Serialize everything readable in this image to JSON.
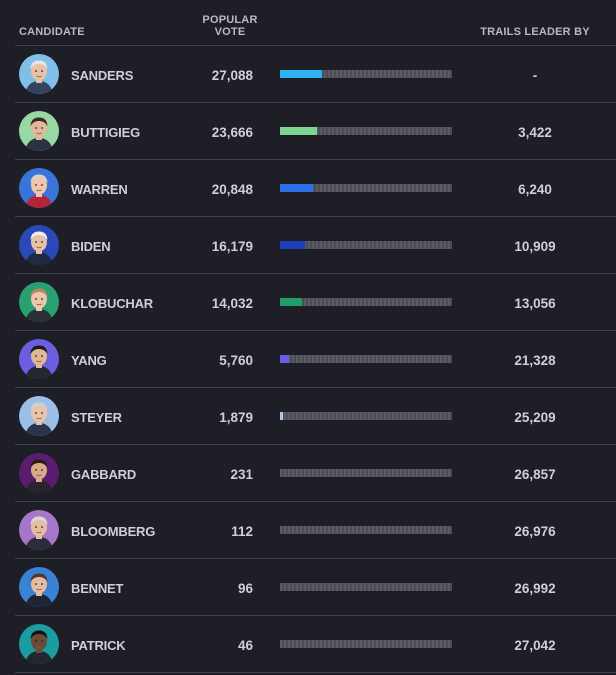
{
  "header": {
    "candidate": "CANDIDATE",
    "popular_vote": "POPULAR VOTE",
    "trails_leader_by": "TRAILS LEADER BY"
  },
  "rows": [
    {
      "name": "SANDERS",
      "votes": "27,088",
      "trails": "-",
      "bar_color": "#2cb3f0",
      "bar_fraction": 0.245,
      "avatar_bg": "#7fbfe8",
      "skin": "#e8c2a8",
      "hair": "#e6e6e6",
      "shirt": "#35445e"
    },
    {
      "name": "BUTTIGIEG",
      "votes": "23,666",
      "trails": "3,422",
      "bar_color": "#7ed493",
      "bar_fraction": 0.215,
      "avatar_bg": "#98d8a6",
      "skin": "#e3b79c",
      "hair": "#3b2b22",
      "shirt": "#2b3342"
    },
    {
      "name": "WARREN",
      "votes": "20,848",
      "trails": "6,240",
      "bar_color": "#2e6fe8",
      "bar_fraction": 0.19,
      "avatar_bg": "#3b74d8",
      "skin": "#efc7ae",
      "hair": "#d9cfc4",
      "shirt": "#b3263a"
    },
    {
      "name": "BIDEN",
      "votes": "16,179",
      "trails": "10,909",
      "bar_color": "#1a3fb8",
      "bar_fraction": 0.145,
      "avatar_bg": "#2a48b8",
      "skin": "#e8c0a6",
      "hair": "#eeeeee",
      "shirt": "#1f2a44"
    },
    {
      "name": "KLOBUCHAR",
      "votes": "14,032",
      "trails": "13,056",
      "bar_color": "#1f9e6a",
      "bar_fraction": 0.125,
      "avatar_bg": "#2aa070",
      "skin": "#edc6ad",
      "hair": "#b08a5b",
      "shirt": "#2b2f3a"
    },
    {
      "name": "YANG",
      "votes": "5,760",
      "trails": "21,328",
      "bar_color": "#6a5ce6",
      "bar_fraction": 0.05,
      "avatar_bg": "#6b5fe0",
      "skin": "#e0b894",
      "hair": "#1d1a18",
      "shirt": "#24272f"
    },
    {
      "name": "STEYER",
      "votes": "1,879",
      "trails": "25,209",
      "bar_color": "#a9c9ee",
      "bar_fraction": 0.018,
      "avatar_bg": "#9cbfe8",
      "skin": "#ebc3a8",
      "hair": "#cfcfcf",
      "shirt": "#2b3448"
    },
    {
      "name": "GABBARD",
      "votes": "231",
      "trails": "26,857",
      "bar_color": "#8a2aa8",
      "bar_fraction": 0.0,
      "avatar_bg": "#5a1c6e",
      "skin": "#d9a98a",
      "hair": "#2a1d18",
      "shirt": "#2a2330"
    },
    {
      "name": "BLOOMBERG",
      "votes": "112",
      "trails": "26,976",
      "bar_color": "#b07ad0",
      "bar_fraction": 0.0,
      "avatar_bg": "#a676c8",
      "skin": "#e6bea4",
      "hair": "#d9d9d9",
      "shirt": "#2a2e3c"
    },
    {
      "name": "BENNET",
      "votes": "96",
      "trails": "26,992",
      "bar_color": "#3a7cd0",
      "bar_fraction": 0.0,
      "avatar_bg": "#3a82d4",
      "skin": "#e4bca2",
      "hair": "#4a3a2e",
      "shirt": "#1f2536"
    },
    {
      "name": "PATRICK",
      "votes": "46",
      "trails": "27,042",
      "bar_color": "#1a8f94",
      "bar_fraction": 0.0,
      "avatar_bg": "#1a9ca0",
      "skin": "#6b4a36",
      "hair": "#141010",
      "shirt": "#22262f"
    }
  ]
}
